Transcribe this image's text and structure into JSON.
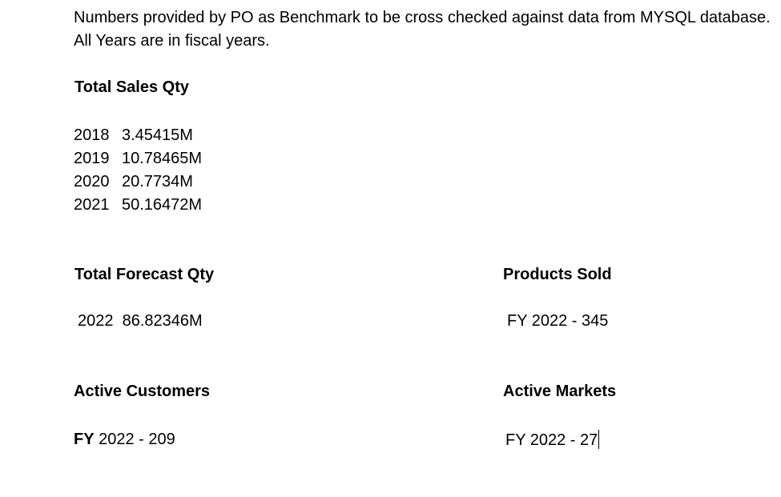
{
  "intro": {
    "text": "Numbers provided by PO as Benchmark to be cross checked against data from MYSQL database. All Years are in fiscal years."
  },
  "total_sales": {
    "heading": "Total Sales Qty",
    "rows": [
      {
        "year": "2018",
        "value": "3.45415M"
      },
      {
        "year": "2019",
        "value": "10.78465M"
      },
      {
        "year": "2020",
        "value": "20.7734M"
      },
      {
        "year": "2021",
        "value": "50.16472M"
      }
    ]
  },
  "forecast": {
    "heading": "Total Forecast Qty",
    "value": "2022  86.82346M"
  },
  "products_sold": {
    "heading": "Products Sold",
    "value": "FY 2022 - 345"
  },
  "active_customers": {
    "heading": "Active Customers",
    "prefix": "FY",
    "value": " 2022 - 209"
  },
  "active_markets": {
    "heading": "Active Markets",
    "value": "FY 2022 - 27"
  }
}
